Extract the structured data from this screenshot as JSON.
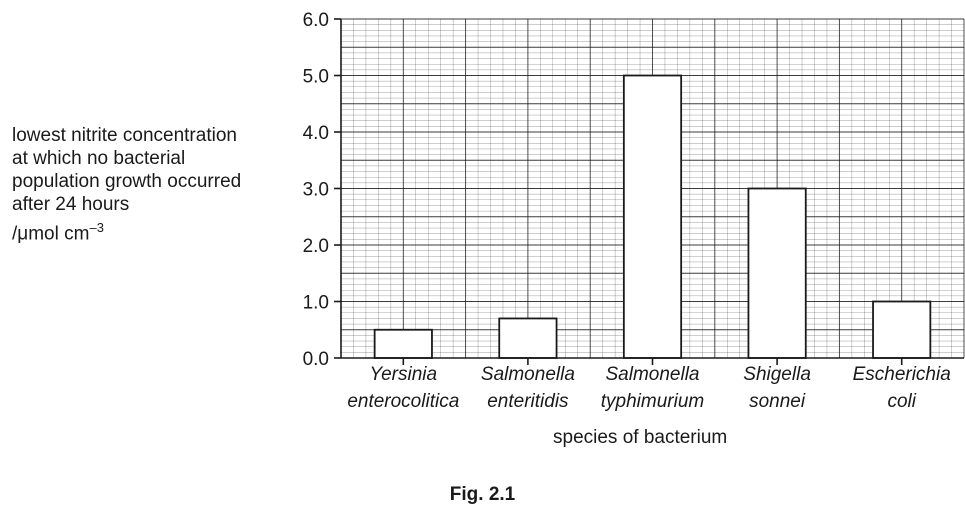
{
  "chart_data": {
    "type": "bar",
    "categories": [
      [
        "Yersinia",
        "enterocolitica"
      ],
      [
        "Salmonella",
        "enteritidis"
      ],
      [
        "Salmonella",
        "typhimurium"
      ],
      [
        "Shigella",
        "sonnei"
      ],
      [
        "Escherichia",
        "coli"
      ]
    ],
    "values": [
      0.5,
      0.7,
      5.0,
      3.0,
      1.0
    ],
    "ylim": [
      0,
      6
    ],
    "yticks": [
      "0.0",
      "1.0",
      "2.0",
      "3.0",
      "4.0",
      "5.0",
      "6.0"
    ],
    "ylabel_lines": [
      "lowest nitrite concentration",
      "at which no bacterial",
      "population growth occurred",
      "after 24 hours"
    ],
    "ylabel_unit_prefix": "/",
    "ylabel_unit_mu": "μ",
    "ylabel_unit_main": "mol cm",
    "ylabel_unit_exp": "–3",
    "xlabel": "species of bacterium",
    "grid": true,
    "bar_fill": "#ffffff",
    "line_color": "#1a1a1a"
  },
  "caption": "Fig. 2.1"
}
